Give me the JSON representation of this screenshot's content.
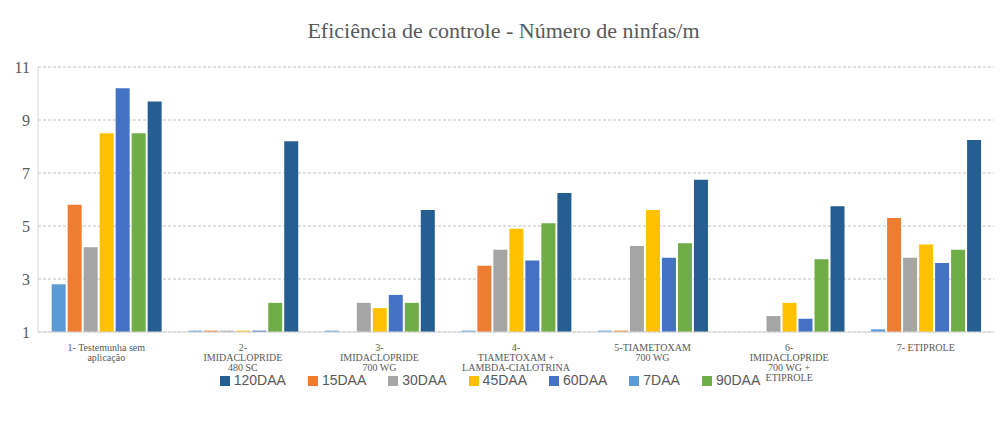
{
  "chart_data": {
    "type": "bar",
    "title": "Eficiência de controle - Número de ninfas/m",
    "categories": [
      "1- Testemunha sem aplicação",
      "2- IMIDACLOPRIDE 480 SC",
      "3- IMIDACLOPRIDE 700 WG",
      "4- TIAMETOXAM + LAMBDA-CIALOTRINA",
      "5-TIAMETOXAM 700 WG",
      "6- IMIDACLOPRIDE 700 WG + ETIPROLE",
      "7- ETIPROLE"
    ],
    "series": [
      {
        "name": "7DAA",
        "color": "#5b9bd5",
        "values": [
          2.8,
          1.05,
          1.05,
          1.05,
          1.05,
          1.0,
          1.1
        ]
      },
      {
        "name": "15DAA",
        "color": "#ed7d31",
        "values": [
          5.8,
          1.05,
          1.0,
          3.5,
          1.05,
          1.0,
          5.3
        ]
      },
      {
        "name": "30DAA",
        "color": "#a5a5a5",
        "values": [
          4.2,
          1.05,
          2.1,
          4.1,
          4.25,
          1.6,
          3.8
        ]
      },
      {
        "name": "45DAA",
        "color": "#ffc000",
        "values": [
          8.5,
          1.05,
          1.9,
          4.9,
          5.6,
          2.1,
          4.3
        ]
      },
      {
        "name": "60DAA",
        "color": "#4472c4",
        "values": [
          10.2,
          1.05,
          2.4,
          3.7,
          3.8,
          1.5,
          3.6
        ]
      },
      {
        "name": "90DAA",
        "color": "#70ad47",
        "values": [
          8.5,
          2.1,
          2.1,
          5.1,
          4.35,
          3.75,
          4.1
        ]
      },
      {
        "name": "120DAA",
        "color": "#255e91",
        "values": [
          9.7,
          8.2,
          5.6,
          6.25,
          6.75,
          5.75,
          8.25
        ]
      }
    ],
    "ylim": [
      1,
      11
    ],
    "yticks": [
      1,
      3,
      5,
      7,
      9,
      11
    ],
    "grid": true,
    "legend": "bottom"
  }
}
